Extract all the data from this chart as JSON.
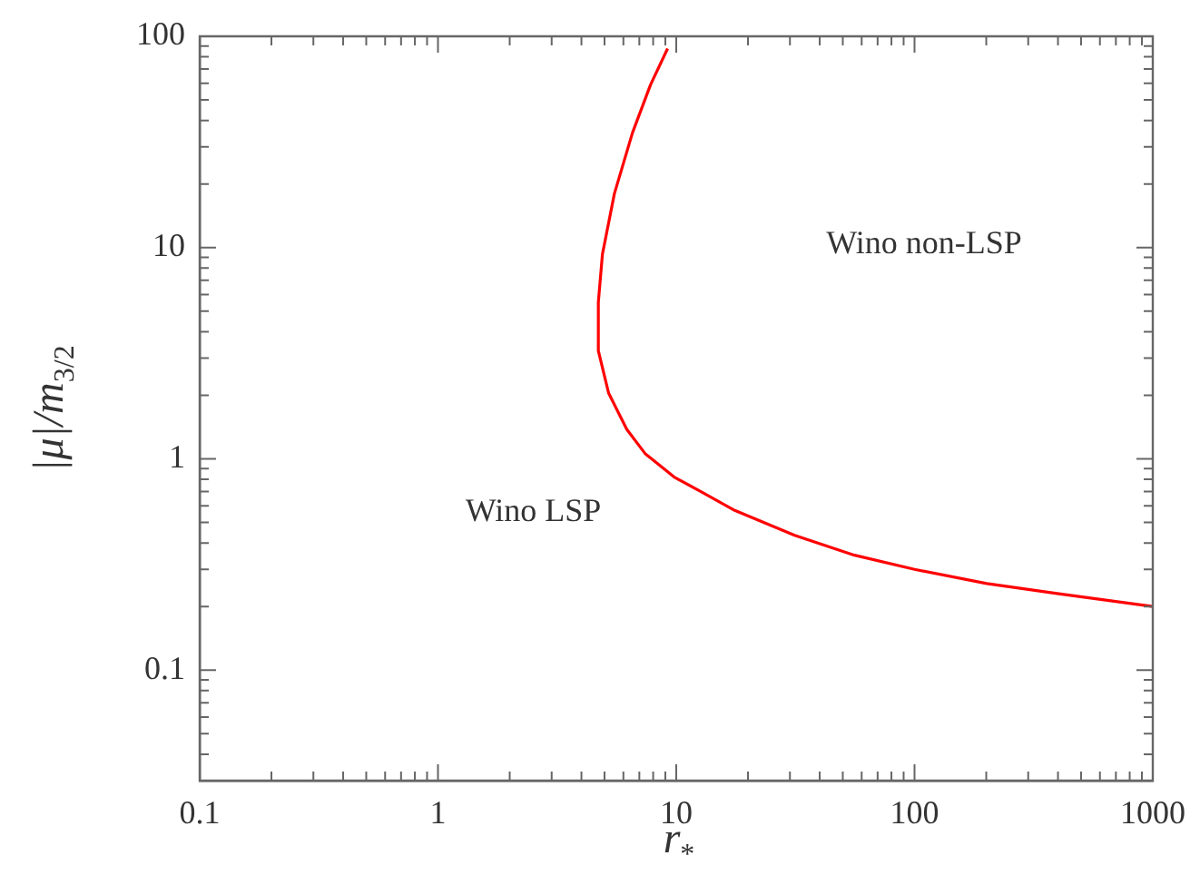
{
  "chart_data": {
    "type": "line",
    "xlabel": "r$_{*}$",
    "ylabel": "|μ|/m$_{3/2}$",
    "log": "xy",
    "grid": false,
    "legend": false,
    "marker": "none",
    "line_style": "solid",
    "xlim": [
      0.1,
      1000
    ],
    "ylim": [
      0.03,
      100
    ],
    "xticks": [
      0.1,
      {
        "value": 0.2,
        "label": null
      },
      {
        "value": 0.3,
        "label": null
      },
      {
        "value": 0.4,
        "label": null
      },
      {
        "value": 0.5,
        "label": null
      },
      {
        "value": 0.6,
        "label": null
      },
      {
        "value": 0.7,
        "label": null
      },
      {
        "value": 0.8,
        "label": null
      },
      {
        "value": 0.9,
        "label": null
      },
      1,
      {
        "value": 2,
        "label": null
      },
      {
        "value": 3,
        "label": null
      },
      {
        "value": 4,
        "label": null
      },
      {
        "value": 5,
        "label": null
      },
      {
        "value": 6,
        "label": null
      },
      {
        "value": 7,
        "label": null
      },
      {
        "value": 8,
        "label": null
      },
      {
        "value": 9,
        "label": null
      },
      10,
      {
        "value": 20,
        "label": null
      },
      {
        "value": 30,
        "label": null
      },
      {
        "value": 40,
        "label": null
      },
      {
        "value": 50,
        "label": null
      },
      {
        "value": 60,
        "label": null
      },
      {
        "value": 70,
        "label": null
      },
      {
        "value": 80,
        "label": null
      },
      {
        "value": 90,
        "label": null
      },
      100,
      {
        "value": 200,
        "label": null
      },
      {
        "value": 300,
        "label": null
      },
      {
        "value": 400,
        "label": null
      },
      {
        "value": 500,
        "label": null
      },
      {
        "value": 600,
        "label": null
      },
      {
        "value": 700,
        "label": null
      },
      {
        "value": 800,
        "label": null
      },
      {
        "value": 900,
        "label": null
      },
      1000
    ],
    "yticks": [
      {
        "value": 0.04,
        "label": null
      },
      {
        "value": 0.05,
        "label": null
      },
      {
        "value": 0.06,
        "label": null
      },
      {
        "value": 0.07,
        "label": null
      },
      {
        "value": 0.08,
        "label": null
      },
      {
        "value": 0.09,
        "label": null
      },
      0.1,
      {
        "value": 0.2,
        "label": null
      },
      {
        "value": 0.3,
        "label": null
      },
      {
        "value": 0.4,
        "label": null
      },
      {
        "value": 0.5,
        "label": null
      },
      {
        "value": 0.6,
        "label": null
      },
      {
        "value": 0.7,
        "label": null
      },
      {
        "value": 0.8,
        "label": null
      },
      {
        "value": 0.9,
        "label": null
      },
      1,
      {
        "value": 2,
        "label": null
      },
      {
        "value": 3,
        "label": null
      },
      {
        "value": 4,
        "label": null
      },
      {
        "value": 5,
        "label": null
      },
      {
        "value": 6,
        "label": null
      },
      {
        "value": 7,
        "label": null
      },
      {
        "value": 8,
        "label": null
      },
      {
        "value": 9,
        "label": null
      },
      10,
      {
        "value": 20,
        "label": null
      },
      {
        "value": 30,
        "label": null
      },
      {
        "value": 40,
        "label": null
      },
      {
        "value": 50,
        "label": null
      },
      {
        "value": 60,
        "label": null
      },
      {
        "value": 70,
        "label": null
      },
      {
        "value": 80,
        "label": null
      },
      {
        "value": 90,
        "label": null
      },
      100
    ],
    "annotations": [
      "Wino LSP",
      "Wino non-LSP"
    ],
    "series": [
      {
        "color": "#ff0000",
        "x": [
          9.2,
          7.8,
          6.55,
          5.5,
          4.9,
          4.71,
          4.71,
          5.2,
          6.2,
          7.4,
          9.8,
          12.4,
          17.6,
          31.4,
          56,
          100,
          201,
          403,
          1000
        ],
        "values": [
          87.5,
          59,
          34.9,
          18,
          9.3,
          5.5,
          3.25,
          2.05,
          1.38,
          1.06,
          0.82,
          0.71,
          0.57,
          0.435,
          0.35,
          0.3,
          0.257,
          0.23,
          0.2
        ]
      }
    ]
  }
}
